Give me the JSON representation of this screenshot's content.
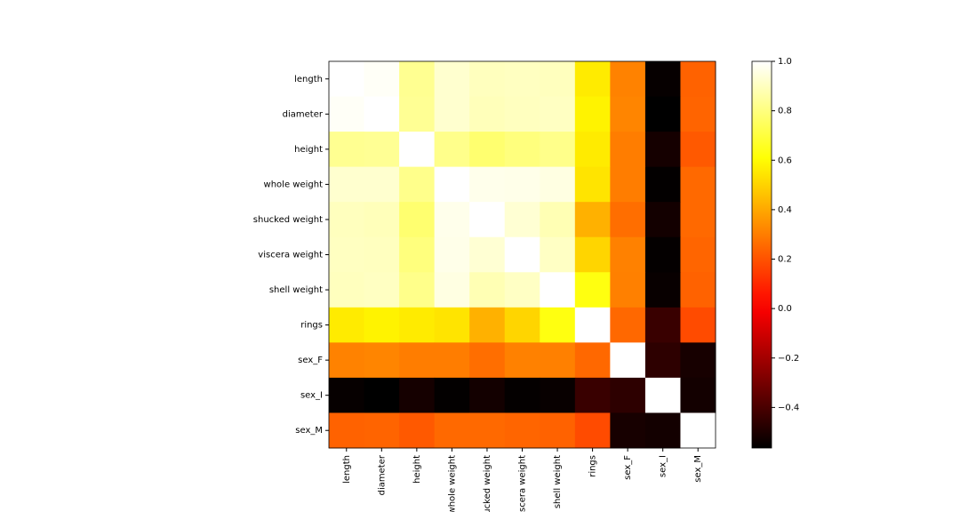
{
  "chart_data": {
    "type": "heatmap",
    "categories": [
      "length",
      "diameter",
      "height",
      "whole weight",
      "shucked weight",
      "viscera weight",
      "shell weight",
      "rings",
      "sex_F",
      "sex_I",
      "sex_M"
    ],
    "z": [
      [
        1.0,
        0.987,
        0.828,
        0.925,
        0.898,
        0.903,
        0.898,
        0.557,
        0.31,
        -0.551,
        0.236
      ],
      [
        0.987,
        1.0,
        0.834,
        0.925,
        0.893,
        0.9,
        0.905,
        0.575,
        0.318,
        -0.564,
        0.241
      ],
      [
        0.828,
        0.834,
        1.0,
        0.819,
        0.775,
        0.798,
        0.817,
        0.557,
        0.298,
        -0.518,
        0.216
      ],
      [
        0.925,
        0.925,
        0.819,
        1.0,
        0.969,
        0.966,
        0.955,
        0.54,
        0.3,
        -0.558,
        0.253
      ],
      [
        0.898,
        0.893,
        0.775,
        0.969,
        1.0,
        0.932,
        0.883,
        0.421,
        0.264,
        -0.522,
        0.252
      ],
      [
        0.903,
        0.9,
        0.798,
        0.966,
        0.932,
        1.0,
        0.908,
        0.504,
        0.308,
        -0.556,
        0.243
      ],
      [
        0.898,
        0.905,
        0.817,
        0.955,
        0.883,
        0.908,
        1.0,
        0.628,
        0.306,
        -0.547,
        0.236
      ],
      [
        0.557,
        0.575,
        0.557,
        0.54,
        0.421,
        0.504,
        0.628,
        1.0,
        0.25,
        -0.436,
        0.182
      ],
      [
        0.31,
        0.318,
        0.298,
        0.3,
        0.264,
        0.308,
        0.306,
        0.25,
        1.0,
        -0.464,
        -0.512
      ],
      [
        -0.551,
        -0.564,
        -0.518,
        -0.558,
        -0.522,
        -0.556,
        -0.547,
        -0.436,
        -0.464,
        1.0,
        -0.522
      ],
      [
        0.236,
        0.241,
        0.216,
        0.253,
        0.252,
        0.243,
        0.236,
        0.182,
        -0.512,
        -0.522,
        1.0
      ]
    ],
    "colormap": "hot",
    "zlim": [
      -0.564,
      1.0
    ],
    "zticks": [
      {
        "value": -0.4,
        "label": "−0.4"
      },
      {
        "value": -0.2,
        "label": "−0.2"
      },
      {
        "value": 0.0,
        "label": "0.0"
      },
      0.2,
      0.4,
      0.6,
      0.8,
      {
        "value": 1.0,
        "label": "1.0"
      }
    ]
  }
}
